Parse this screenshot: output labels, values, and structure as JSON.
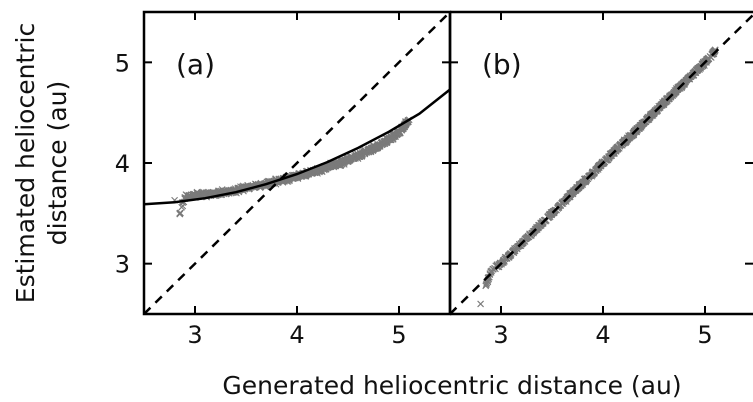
{
  "chart_data": {
    "type": "scatter",
    "xlabel": "Generated heliocentric distance (au)",
    "ylabel": "Estimated heliocentric distance (au)",
    "ylabel_lines": [
      "Estimated heliocentric",
      "distance (au)"
    ],
    "xlim": [
      2.5,
      5.5
    ],
    "ylim": [
      2.5,
      5.5
    ],
    "xticks": [
      3,
      4,
      5
    ],
    "yticks": [
      3,
      4,
      5
    ],
    "grid": false,
    "colors": {
      "points": "#7a7a7a",
      "fit": "#000000",
      "reference": "#000000"
    },
    "panels": [
      {
        "label": "(a)",
        "marker": "x",
        "reference_line": {
          "style": "dashed",
          "x": [
            2.5,
            5.5
          ],
          "y": [
            2.5,
            5.5
          ]
        },
        "fit_curve": {
          "style": "solid",
          "x": [
            2.5,
            2.8,
            3.1,
            3.4,
            3.7,
            4.0,
            4.3,
            4.6,
            4.9,
            5.2,
            5.5
          ],
          "y": [
            3.59,
            3.61,
            3.65,
            3.71,
            3.79,
            3.89,
            4.01,
            4.15,
            4.31,
            4.49,
            4.73
          ]
        },
        "scatter_points": {
          "x": [
            2.8,
            2.85,
            2.9,
            3.0,
            3.1,
            3.2,
            3.3,
            3.4,
            3.5,
            3.6,
            3.7,
            3.8,
            3.9,
            4.0,
            4.1,
            4.2,
            4.3,
            4.4,
            4.5,
            4.6,
            4.7,
            4.8,
            4.9,
            5.0,
            5.1
          ],
          "y": [
            3.63,
            3.5,
            3.66,
            3.68,
            3.69,
            3.7,
            3.71,
            3.73,
            3.75,
            3.77,
            3.79,
            3.82,
            3.84,
            3.87,
            3.9,
            3.92,
            3.96,
            3.99,
            4.03,
            4.07,
            4.12,
            4.17,
            4.23,
            4.31,
            4.43
          ]
        }
      },
      {
        "label": "(b)",
        "marker": "x",
        "reference_line": {
          "style": "dashed",
          "x": [
            2.5,
            5.5
          ],
          "y": [
            2.5,
            5.5
          ]
        },
        "scatter_points": {
          "x": [
            2.8,
            2.85,
            2.9,
            3.0,
            3.1,
            3.2,
            3.3,
            3.4,
            3.5,
            3.6,
            3.7,
            3.8,
            3.9,
            4.0,
            4.1,
            4.2,
            4.3,
            4.4,
            4.5,
            4.6,
            4.7,
            4.8,
            4.9,
            5.0,
            5.1
          ],
          "y": [
            2.6,
            2.78,
            2.92,
            3.0,
            3.1,
            3.2,
            3.3,
            3.4,
            3.5,
            3.6,
            3.7,
            3.8,
            3.9,
            4.0,
            4.1,
            4.2,
            4.3,
            4.4,
            4.5,
            4.6,
            4.7,
            4.8,
            4.9,
            5.0,
            5.12
          ]
        }
      }
    ]
  }
}
